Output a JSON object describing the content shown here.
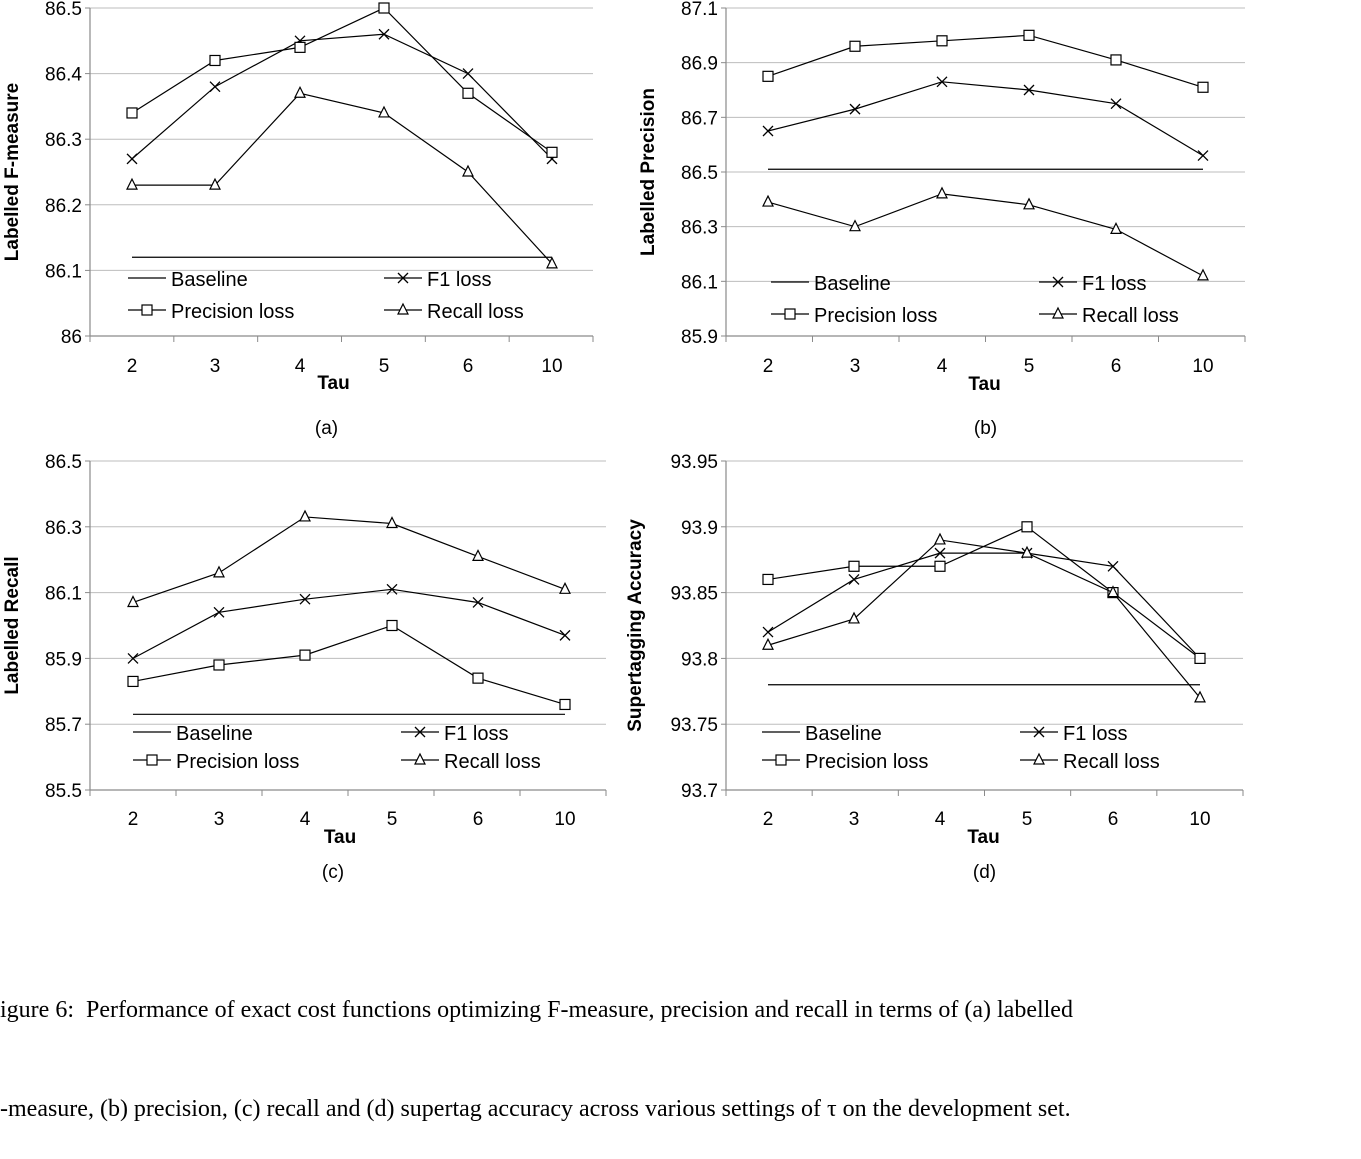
{
  "chart_data": [
    {
      "type": "line",
      "panel_label": "(a)",
      "categories": [
        "2",
        "3",
        "4",
        "5",
        "6",
        "10"
      ],
      "xlabel": "Tau",
      "ylabel": "Labelled F-measure",
      "ylim": [
        86,
        86.5
      ],
      "yticks": [
        "86",
        "86.1",
        "86.2",
        "86.3",
        "86.4",
        "86.5"
      ],
      "grid": "horizontal",
      "legend_position": "bottom",
      "series": [
        {
          "name": "Baseline",
          "marker": "none",
          "values": [
            86.12,
            86.12,
            86.12,
            86.12,
            86.12,
            86.12
          ]
        },
        {
          "name": "F1 loss",
          "marker": "x",
          "values": [
            86.27,
            86.38,
            86.45,
            86.46,
            86.4,
            86.27
          ]
        },
        {
          "name": "Precision loss",
          "marker": "square",
          "values": [
            86.34,
            86.42,
            86.44,
            86.5,
            86.37,
            86.28
          ]
        },
        {
          "name": "Recall loss",
          "marker": "triangle",
          "values": [
            86.23,
            86.23,
            86.37,
            86.34,
            86.25,
            86.11
          ]
        }
      ]
    },
    {
      "type": "line",
      "panel_label": "(b)",
      "categories": [
        "2",
        "3",
        "4",
        "5",
        "6",
        "10"
      ],
      "xlabel": "Tau",
      "ylabel": "Labelled Precision",
      "ylim": [
        85.9,
        87.1
      ],
      "yticks": [
        "85.9",
        "86.1",
        "86.3",
        "86.5",
        "86.7",
        "86.9",
        "87.1"
      ],
      "grid": "horizontal",
      "legend_position": "bottom",
      "series": [
        {
          "name": "Baseline",
          "marker": "none",
          "values": [
            86.51,
            86.51,
            86.51,
            86.51,
            86.51,
            86.51
          ]
        },
        {
          "name": "F1 loss",
          "marker": "x",
          "values": [
            86.65,
            86.73,
            86.83,
            86.8,
            86.75,
            86.56
          ]
        },
        {
          "name": "Precision loss",
          "marker": "square",
          "values": [
            86.85,
            86.96,
            86.98,
            87.0,
            86.91,
            86.81
          ]
        },
        {
          "name": "Recall loss",
          "marker": "triangle",
          "values": [
            86.39,
            86.3,
            86.42,
            86.38,
            86.29,
            86.12
          ]
        }
      ]
    },
    {
      "type": "line",
      "panel_label": "(c)",
      "categories": [
        "2",
        "3",
        "4",
        "5",
        "6",
        "10"
      ],
      "xlabel": "Tau",
      "ylabel": "Labelled Recall",
      "ylim": [
        85.5,
        86.5
      ],
      "yticks": [
        "85.5",
        "85.7",
        "85.9",
        "86.1",
        "86.3",
        "86.5"
      ],
      "grid": "horizontal",
      "legend_position": "bottom",
      "series": [
        {
          "name": "Baseline",
          "marker": "none",
          "values": [
            85.73,
            85.73,
            85.73,
            85.73,
            85.73,
            85.73
          ]
        },
        {
          "name": "F1 loss",
          "marker": "x",
          "values": [
            85.9,
            86.04,
            86.08,
            86.11,
            86.07,
            85.97
          ]
        },
        {
          "name": "Precision loss",
          "marker": "square",
          "values": [
            85.83,
            85.88,
            85.91,
            86.0,
            85.84,
            85.76
          ]
        },
        {
          "name": "Recall loss",
          "marker": "triangle",
          "values": [
            86.07,
            86.16,
            86.33,
            86.31,
            86.21,
            86.11
          ]
        }
      ]
    },
    {
      "type": "line",
      "panel_label": "(d)",
      "categories": [
        "2",
        "3",
        "4",
        "5",
        "6",
        "10"
      ],
      "xlabel": "Tau",
      "ylabel": "Supertagging Accuracy",
      "ylim": [
        93.7,
        93.95
      ],
      "yticks": [
        "93.7",
        "93.75",
        "93.8",
        "93.85",
        "93.9",
        "93.95"
      ],
      "grid": "horizontal",
      "legend_position": "bottom",
      "series": [
        {
          "name": "Baseline",
          "marker": "none",
          "values": [
            93.78,
            93.78,
            93.78,
            93.78,
            93.78,
            93.78
          ]
        },
        {
          "name": "F1 loss",
          "marker": "x",
          "values": [
            93.82,
            93.86,
            93.88,
            93.88,
            93.87,
            93.8
          ]
        },
        {
          "name": "Precision loss",
          "marker": "square",
          "values": [
            93.86,
            93.87,
            93.87,
            93.9,
            93.85,
            93.8
          ]
        },
        {
          "name": "Recall loss",
          "marker": "triangle",
          "values": [
            93.81,
            93.83,
            93.89,
            93.88,
            93.85,
            93.77
          ]
        }
      ]
    }
  ],
  "caption": {
    "line1": "igure 6:  Performance of exact cost functions optimizing F-measure, precision and recall in terms of (a) labelled",
    "line2": "-measure, (b) precision, (c) recall and (d) supertag accuracy across various settings of τ on the development set."
  }
}
